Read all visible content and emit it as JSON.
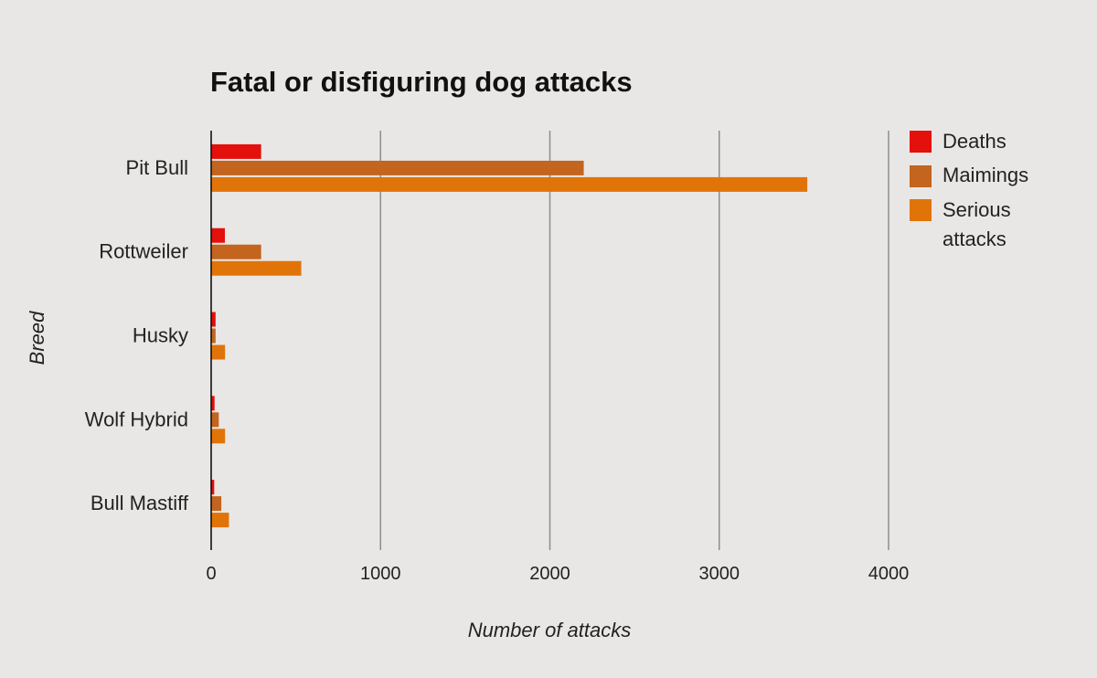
{
  "chart_data": {
    "type": "bar",
    "orientation": "horizontal",
    "title": "Fatal or disfiguring dog attacks",
    "xlabel": "Number of attacks",
    "ylabel": "Breed",
    "categories": [
      "Pit Bull",
      "Rottweiler",
      "Husky",
      "Wolf Hybrid",
      "Bull Mastiff"
    ],
    "series": [
      {
        "name": "Deaths",
        "color": "#e3100c",
        "values": [
          295,
          81,
          26,
          20,
          18
        ]
      },
      {
        "name": "Maimings",
        "color": "#c3641f",
        "values": [
          2200,
          295,
          26,
          45,
          60
        ]
      },
      {
        "name": "Serious attacks",
        "color": "#e17408",
        "values": [
          3520,
          532,
          82,
          82,
          105
        ]
      }
    ],
    "xlim": [
      0,
      4000
    ],
    "xticks": [
      "0",
      "1000",
      "2000",
      "3000",
      "4000"
    ],
    "grid": true,
    "legend_position": "right",
    "legend_labels": {
      "deaths": "Deaths",
      "maimings": "Maimings",
      "serious_line1": "Serious",
      "serious_line2": "attacks"
    }
  }
}
